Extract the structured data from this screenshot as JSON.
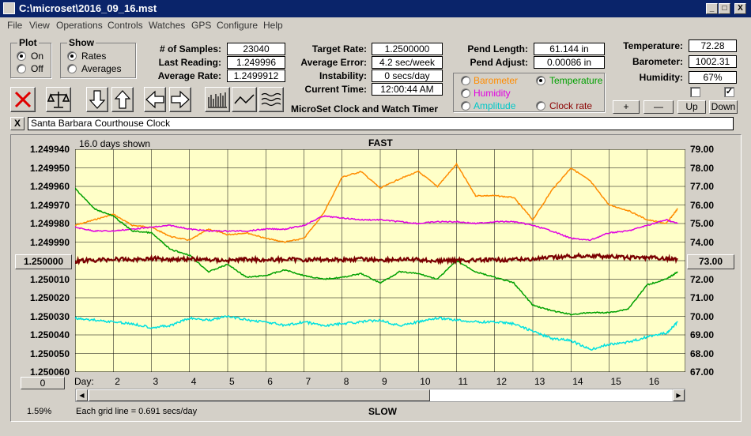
{
  "window": {
    "title": "C:\\microset\\2016_09_16.mst",
    "btn_min": "_",
    "btn_max": "□",
    "btn_close": "X"
  },
  "menu": [
    "File",
    "View",
    "Operations",
    "Controls",
    "Watches",
    "GPS",
    "Configure",
    "Help"
  ],
  "plot": {
    "label": "Plot",
    "on": "On",
    "off": "Off"
  },
  "show": {
    "label": "Show",
    "rates": "Rates",
    "averages": "Averages"
  },
  "stats": {
    "samples_label": "# of Samples:",
    "samples": "23040",
    "last_label": "Last Reading:",
    "last": "1.249996",
    "avg_label": "Average Rate:",
    "avg": "1.2499912",
    "target_label": "Target Rate:",
    "target": "1.2500000",
    "avgerr_label": "Average Error:",
    "avgerr": "4.2 sec/week",
    "instab_label": "Instability:",
    "instab": "0 secs/day",
    "time_label": "Current Time:",
    "time": "12:00:44 AM",
    "pendlen_label": "Pend Length:",
    "pendlen": "61.144 in",
    "pendadj_label": "Pend Adjust:",
    "pendadj": "0.00086 in",
    "temp_label": "Temperature:",
    "temp": "72.28",
    "baro_label": "Barometer:",
    "baro": "1002.31",
    "hum_label": "Humidity:",
    "hum": "67%"
  },
  "app_name": "MicroSet Clock and Watch Timer",
  "sensors": {
    "barometer": "Barometer",
    "temperature": "Temperature",
    "humidity": "Humidity",
    "amplitude": "Amplitude",
    "clockrate": "Clock rate"
  },
  "small_buttons": {
    "plus": "+",
    "minus": "—",
    "up": "Up",
    "down": "Down"
  },
  "clock_close": "X",
  "clock_name": "Santa Barbara Courthouse Clock",
  "colors": {
    "barometer": "#ff8c00",
    "temperature": "#00a000",
    "humidity": "#e000e0",
    "amplitude": "#00e0e0",
    "rate": "#7a0000",
    "plotbg": "#ffffc8"
  },
  "chart_header": {
    "days_shown": "16.0 days shown",
    "fast": "FAST",
    "slow": "SLOW",
    "day": "Day:",
    "grid": "Each grid line = 0.691 secs/day",
    "percent": "1.59%",
    "center_btn": "1.250000",
    "right_btn": "73.00",
    "zero_btn": "0"
  },
  "chart_data": {
    "type": "line",
    "x_range": [
      1,
      17
    ],
    "y_left": {
      "ticks": [
        "1.249940",
        "1.249950",
        "1.249960",
        "1.249970",
        "1.249980",
        "1.249990",
        "1.250000",
        "1.250010",
        "1.250020",
        "1.250030",
        "1.250040",
        "1.250050",
        "1.250060"
      ],
      "range": [
        1.24994,
        1.25006
      ]
    },
    "y_right": {
      "ticks": [
        "79.00",
        "78.00",
        "77.00",
        "76.00",
        "75.00",
        "74.00",
        "73.00",
        "72.00",
        "71.00",
        "70.00",
        "69.00",
        "68.00",
        "67.00"
      ],
      "range": [
        67,
        79
      ]
    },
    "x_ticks": [
      "2",
      "3",
      "4",
      "5",
      "6",
      "7",
      "8",
      "9",
      "10",
      "11",
      "12",
      "13",
      "14",
      "15",
      "16"
    ],
    "series": [
      {
        "key": "barometer",
        "x": [
          1,
          1.5,
          2,
          2.5,
          3,
          3.5,
          4,
          4.5,
          5,
          5.5,
          6,
          6.5,
          7,
          7.5,
          8,
          8.5,
          9,
          9.5,
          10,
          10.5,
          11,
          11.5,
          12,
          12.5,
          13,
          13.5,
          14,
          14.5,
          15,
          15.5,
          16,
          16.5,
          16.8
        ],
        "y": [
          74.9,
          75.2,
          75.5,
          74.9,
          74.8,
          74.3,
          74.1,
          74.7,
          74.4,
          74.5,
          74.2,
          74.0,
          74.2,
          75.5,
          77.5,
          77.8,
          76.9,
          77.4,
          77.8,
          77.0,
          78.2,
          76.5,
          76.5,
          76.4,
          75.2,
          76.8,
          78.0,
          77.3,
          76.0,
          75.7,
          75.2,
          75.0,
          75.8
        ]
      },
      {
        "key": "humidity",
        "x": [
          1,
          1.5,
          2,
          2.5,
          3,
          3.5,
          4,
          4.5,
          5,
          5.5,
          6,
          6.5,
          7,
          7.5,
          8,
          8.5,
          9,
          9.5,
          10,
          10.5,
          11,
          11.5,
          12,
          12.5,
          13,
          13.5,
          14,
          14.5,
          15,
          15.5,
          16,
          16.5,
          16.8
        ],
        "y": [
          74.8,
          74.6,
          74.6,
          74.7,
          74.8,
          74.9,
          74.7,
          74.6,
          74.6,
          74.6,
          74.7,
          74.7,
          74.9,
          75.4,
          75.3,
          75.2,
          75.2,
          75.1,
          75.0,
          75.1,
          75.1,
          75.0,
          75.1,
          75.1,
          74.9,
          74.6,
          74.2,
          74.1,
          74.5,
          74.6,
          74.9,
          75.2,
          75.0
        ]
      },
      {
        "key": "temperature",
        "x": [
          1,
          1.5,
          2,
          2.5,
          3,
          3.5,
          4,
          4.5,
          5,
          5.5,
          6,
          6.5,
          7,
          7.5,
          8,
          8.5,
          9,
          9.5,
          10,
          10.5,
          11,
          11.5,
          12,
          12.5,
          13,
          13.5,
          14,
          14.5,
          15,
          15.5,
          16,
          16.5,
          16.8
        ],
        "y": [
          76.9,
          75.8,
          75.4,
          74.6,
          74.5,
          73.6,
          73.3,
          72.4,
          72.8,
          72.1,
          72.2,
          72.5,
          72.2,
          72.0,
          72.1,
          72.3,
          71.8,
          72.4,
          72.3,
          72.0,
          73.0,
          72.4,
          72.1,
          71.8,
          70.6,
          70.3,
          70.1,
          70.2,
          70.2,
          70.4,
          71.7,
          72.0,
          72.4
        ]
      },
      {
        "key": "rate",
        "x": [
          1,
          1.5,
          2,
          2.5,
          3,
          3.5,
          4,
          4.5,
          5,
          5.5,
          6,
          6.5,
          7,
          7.5,
          8,
          8.5,
          9,
          9.5,
          10,
          10.5,
          11,
          11.5,
          12,
          12.5,
          13,
          13.5,
          14,
          14.5,
          15,
          15.5,
          16,
          16.5,
          16.8
        ],
        "y": [
          1.2500002,
          1.2499998,
          1.2499992,
          1.2499995,
          1.2499988,
          1.2499992,
          1.2499991,
          1.2499995,
          1.2499999,
          1.2499992,
          1.2499996,
          1.2499993,
          1.2499995,
          1.2499994,
          1.2499995,
          1.2499992,
          1.2499996,
          1.2499994,
          1.2499995,
          1.2500002,
          1.2499997,
          1.2499998,
          1.2499996,
          1.2499995,
          1.2499991,
          1.2499984,
          1.2499976,
          1.2499974,
          1.2499978,
          1.2499984,
          1.2499983,
          1.2499989,
          1.2499993
        ]
      },
      {
        "key": "amplitude",
        "x": [
          1,
          1.5,
          2,
          2.5,
          3,
          3.5,
          4,
          4.5,
          5,
          5.5,
          6,
          6.5,
          7,
          7.5,
          8,
          8.5,
          9,
          9.5,
          10,
          10.5,
          11,
          11.5,
          12,
          12.5,
          13,
          13.5,
          14,
          14.5,
          15,
          15.5,
          16,
          16.5,
          16.8
        ],
        "y": [
          69.9,
          69.8,
          69.7,
          69.6,
          69.4,
          69.5,
          69.9,
          69.8,
          70.0,
          69.8,
          69.7,
          69.5,
          69.7,
          69.5,
          69.6,
          69.7,
          69.8,
          69.5,
          69.7,
          69.9,
          69.8,
          69.7,
          69.7,
          69.6,
          69.2,
          68.8,
          68.7,
          68.2,
          68.5,
          68.6,
          68.9,
          69.1,
          69.7
        ]
      }
    ]
  }
}
